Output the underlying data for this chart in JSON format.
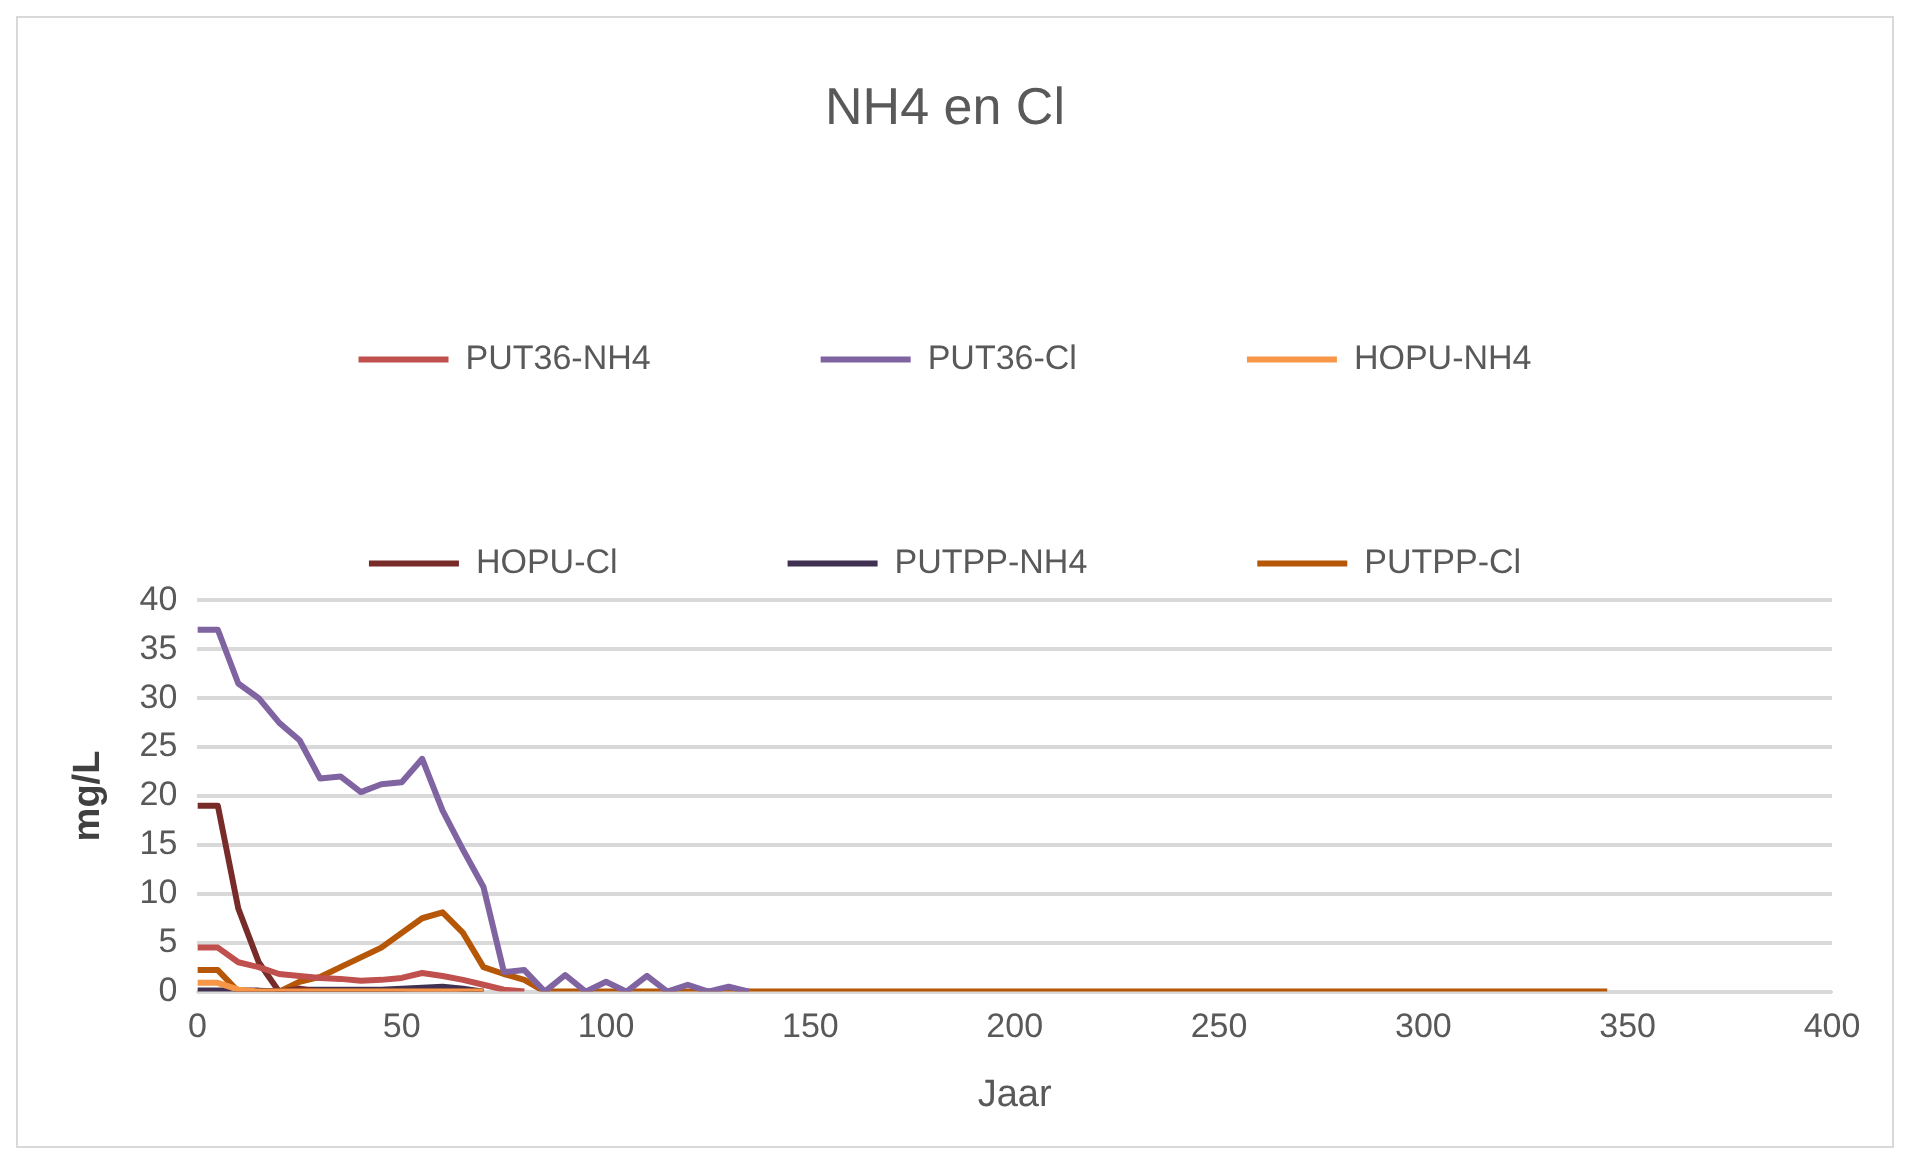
{
  "chart_data": {
    "type": "line",
    "title": "NH4 en Cl",
    "xlabel": "Jaar",
    "ylabel": "mg/L",
    "x": [
      0,
      5,
      10,
      15,
      20,
      25,
      30,
      35,
      40,
      45,
      50,
      55,
      60,
      65,
      70,
      75,
      80,
      85,
      90,
      95,
      100,
      105,
      110,
      115,
      120,
      125,
      130,
      135,
      140,
      145,
      150,
      155,
      160,
      165,
      170,
      175,
      180,
      185,
      190,
      195,
      200,
      205,
      210,
      215,
      220,
      225,
      230,
      235,
      240,
      245,
      250,
      255,
      260,
      265,
      270,
      275,
      280,
      285,
      290,
      295,
      300,
      305,
      310,
      315,
      320,
      325,
      330,
      335,
      340,
      345
    ],
    "series": [
      {
        "name": "PUT36-NH4",
        "color": "#c0504d",
        "values": [
          4.5,
          4.5,
          3,
          2.5,
          1.8,
          1.6,
          1.4,
          1.3,
          1.1,
          1.2,
          1.4,
          1.9,
          1.6,
          1.2,
          0.7,
          0.2,
          0,
          null,
          null,
          null,
          null,
          null,
          null,
          null,
          null,
          null,
          null,
          null,
          null,
          null,
          null,
          null,
          null,
          null,
          null,
          null,
          null,
          null,
          null,
          null,
          null,
          null,
          null,
          null,
          null,
          null,
          null,
          null,
          null,
          null,
          null,
          null,
          null,
          null,
          null,
          null,
          null,
          null,
          null,
          null,
          null,
          null,
          null,
          null,
          null,
          null,
          null,
          null,
          null,
          null
        ]
      },
      {
        "name": "PUT36-Cl",
        "color": "#8064a2",
        "values": [
          37,
          37,
          31.5,
          30,
          27.5,
          25.7,
          21.8,
          22,
          20.4,
          21.2,
          21.4,
          23.8,
          18.5,
          14.5,
          10.7,
          2,
          2.2,
          0,
          1.7,
          0,
          1,
          0,
          1.6,
          0,
          0.7,
          0,
          0.5,
          0,
          null,
          null,
          null,
          null,
          null,
          null,
          null,
          null,
          null,
          null,
          null,
          null,
          null,
          null,
          null,
          null,
          null,
          null,
          null,
          null,
          null,
          null,
          null,
          null,
          null,
          null,
          null,
          null,
          null,
          null,
          null,
          null,
          null,
          null,
          null,
          null,
          null,
          null,
          null,
          null,
          null,
          null
        ]
      },
      {
        "name": "HOPU-NH4",
        "color": "#f79646",
        "values": [
          0.9,
          0.9,
          0.2,
          0,
          0,
          0,
          0,
          0,
          0,
          0,
          0,
          0,
          0,
          0,
          0,
          null,
          null,
          null,
          null,
          null,
          null,
          null,
          null,
          null,
          null,
          null,
          null,
          null,
          null,
          null,
          null,
          null,
          null,
          null,
          null,
          null,
          null,
          null,
          null,
          null,
          null,
          null,
          null,
          null,
          null,
          null,
          null,
          null,
          null,
          null,
          null,
          null,
          null,
          null,
          null,
          null,
          null,
          null,
          null,
          null,
          null,
          null,
          null,
          null,
          null,
          null,
          null,
          null,
          null,
          null
        ]
      },
      {
        "name": "HOPU-Cl",
        "color": "#772c2a",
        "values": [
          19,
          19,
          8.5,
          3,
          0,
          0.3,
          0,
          0,
          0,
          0,
          0,
          0,
          0,
          0,
          0,
          null,
          null,
          null,
          null,
          null,
          null,
          null,
          null,
          null,
          null,
          null,
          null,
          null,
          null,
          null,
          null,
          null,
          null,
          null,
          null,
          null,
          null,
          null,
          null,
          null,
          null,
          null,
          null,
          null,
          null,
          null,
          null,
          null,
          null,
          null,
          null,
          null,
          null,
          null,
          null,
          null,
          null,
          null,
          null,
          null,
          null,
          null,
          null,
          null,
          null,
          null,
          null,
          null,
          null,
          null
        ]
      },
      {
        "name": "PUTPP-NH4",
        "color": "#403152",
        "values": [
          0.1,
          0.1,
          0.1,
          0.1,
          0,
          0.2,
          0.2,
          0.2,
          0.2,
          0.2,
          0.3,
          0.4,
          0.5,
          0.3,
          0,
          null,
          null,
          null,
          null,
          null,
          null,
          null,
          null,
          null,
          null,
          null,
          null,
          null,
          null,
          null,
          null,
          null,
          null,
          null,
          null,
          null,
          null,
          null,
          null,
          null,
          null,
          null,
          null,
          null,
          null,
          null,
          null,
          null,
          null,
          null,
          null,
          null,
          null,
          null,
          null,
          null,
          null,
          null,
          null,
          null,
          null,
          null,
          null,
          null,
          null,
          null,
          null,
          null,
          null,
          null
        ]
      },
      {
        "name": "PUTPP-Cl",
        "color": "#b65708",
        "values": [
          2.2,
          2.2,
          0,
          0,
          0,
          1,
          1.5,
          2.5,
          3.5,
          4.5,
          6,
          7.5,
          8.1,
          6,
          2.5,
          1.8,
          1.2,
          0,
          0,
          0,
          0,
          0,
          0,
          0,
          0,
          0,
          0,
          0,
          0,
          0,
          0,
          0,
          0,
          0,
          0,
          0,
          0,
          0,
          0,
          0,
          0,
          0,
          0,
          0,
          0,
          0,
          0,
          0,
          0,
          0,
          0,
          0,
          0,
          0,
          0,
          0,
          0,
          0,
          0,
          0,
          0,
          0,
          0,
          0,
          0,
          0,
          0,
          0,
          0,
          0
        ]
      }
    ],
    "xlim": [
      0,
      400
    ],
    "xticks": [
      0,
      50,
      100,
      150,
      200,
      250,
      300,
      350,
      400
    ],
    "ylim": [
      0,
      40
    ],
    "yticks": [
      0,
      5,
      10,
      15,
      20,
      25,
      30,
      35,
      40
    ],
    "grid": "y",
    "legend": "top",
    "marker": "none",
    "line_style": "solid"
  }
}
